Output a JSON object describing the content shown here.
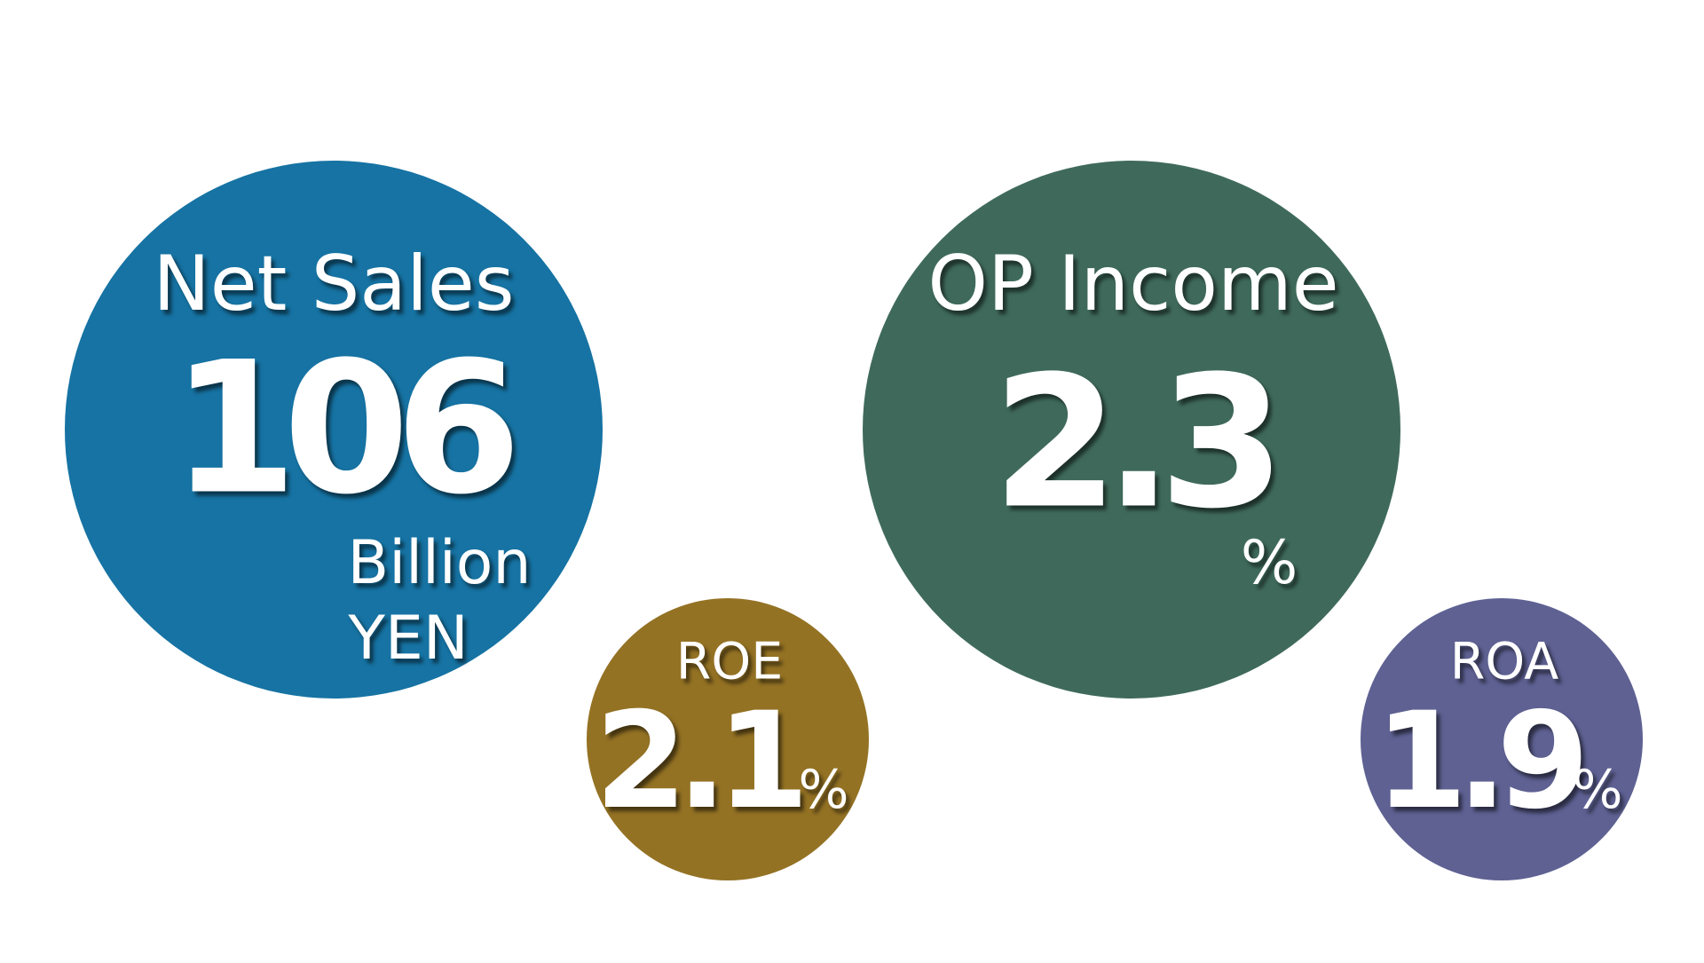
{
  "metrics": [
    {
      "label": "Net Sales",
      "value": "106",
      "unit": [
        "Billion",
        "YEN"
      ]
    },
    {
      "label": "OP Income",
      "value": "2.3",
      "unit": [
        "%"
      ]
    },
    {
      "label": "ROE",
      "value": "2.1",
      "unit": [
        "%"
      ]
    },
    {
      "label": "ROA",
      "value": "1.9",
      "unit": [
        "%"
      ]
    }
  ]
}
